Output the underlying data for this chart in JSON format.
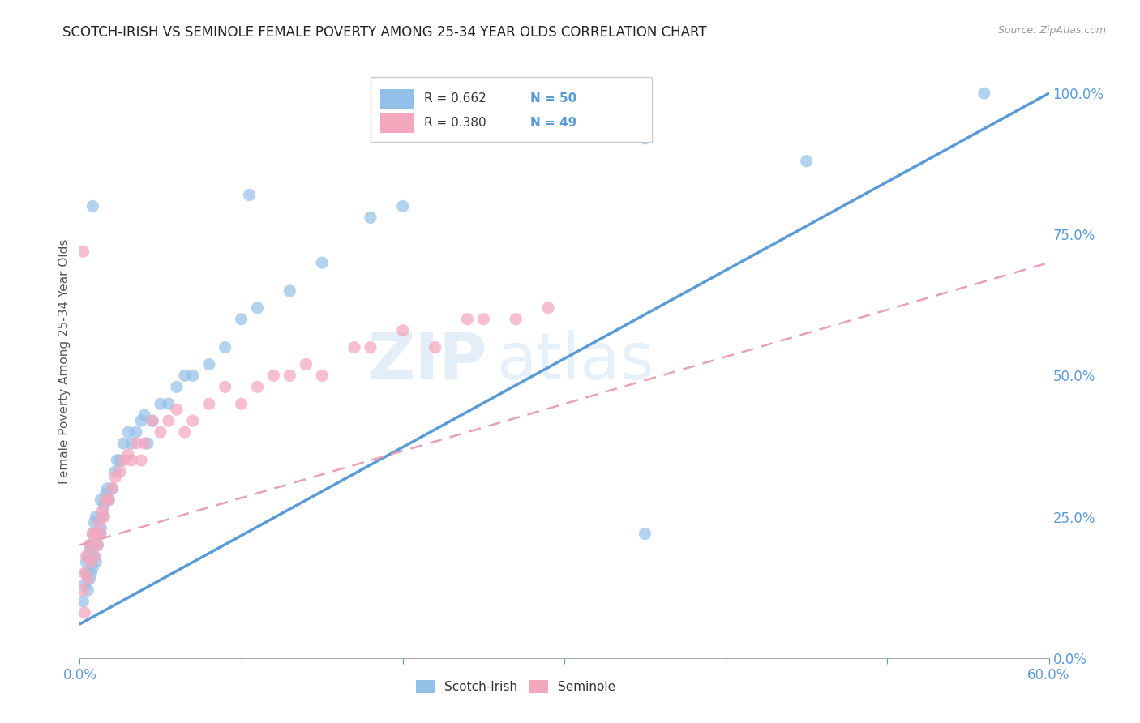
{
  "title": "SCOTCH-IRISH VS SEMINOLE FEMALE POVERTY AMONG 25-34 YEAR OLDS CORRELATION CHART",
  "source": "Source: ZipAtlas.com",
  "ylabel": "Female Poverty Among 25-34 Year Olds",
  "xmin": 0.0,
  "xmax": 0.6,
  "ymin": 0.0,
  "ymax": 1.05,
  "xticks": [
    0.0,
    0.1,
    0.2,
    0.3,
    0.4,
    0.5,
    0.6
  ],
  "xtick_labels": [
    "0.0%",
    "",
    "",
    "",
    "",
    "",
    "60.0%"
  ],
  "yticks": [
    0.0,
    0.25,
    0.5,
    0.75,
    1.0
  ],
  "ytick_labels_right": [
    "0.0%",
    "25.0%",
    "50.0%",
    "75.0%",
    "100.0%"
  ],
  "watermark": "ZIPatlas",
  "blue_color": "#92c0e8",
  "pink_color": "#f4a8be",
  "blue_line_color": "#5b9bd5",
  "pink_line_color": "#e8a0b4",
  "title_color": "#222222",
  "axis_label_color": "#555555",
  "tick_color": "#5b9bd5",
  "grid_color": "#d0d0d0",
  "scotch_irish_x": [
    0.002,
    0.003,
    0.004,
    0.004,
    0.005,
    0.005,
    0.006,
    0.006,
    0.007,
    0.007,
    0.008,
    0.008,
    0.009,
    0.009,
    0.01,
    0.01,
    0.011,
    0.012,
    0.013,
    0.013,
    0.014,
    0.015,
    0.016,
    0.017,
    0.018,
    0.02,
    0.022,
    0.023,
    0.025,
    0.027,
    0.03,
    0.032,
    0.035,
    0.038,
    0.04,
    0.042,
    0.045,
    0.05,
    0.055,
    0.06,
    0.065,
    0.07,
    0.08,
    0.09,
    0.1,
    0.11,
    0.13,
    0.15,
    0.18,
    0.2,
    0.008,
    0.35,
    0.56,
    0.45,
    0.35,
    0.105
  ],
  "scotch_irish_y": [
    0.1,
    0.13,
    0.15,
    0.17,
    0.12,
    0.18,
    0.14,
    0.19,
    0.15,
    0.2,
    0.16,
    0.22,
    0.18,
    0.24,
    0.17,
    0.25,
    0.2,
    0.22,
    0.23,
    0.28,
    0.25,
    0.27,
    0.29,
    0.3,
    0.28,
    0.3,
    0.33,
    0.35,
    0.35,
    0.38,
    0.4,
    0.38,
    0.4,
    0.42,
    0.43,
    0.38,
    0.42,
    0.45,
    0.45,
    0.48,
    0.5,
    0.5,
    0.52,
    0.55,
    0.6,
    0.62,
    0.65,
    0.7,
    0.78,
    0.8,
    0.8,
    0.92,
    1.0,
    0.88,
    0.22,
    0.82
  ],
  "seminole_x": [
    0.002,
    0.003,
    0.004,
    0.005,
    0.006,
    0.007,
    0.008,
    0.009,
    0.01,
    0.011,
    0.012,
    0.013,
    0.014,
    0.015,
    0.016,
    0.018,
    0.02,
    0.022,
    0.025,
    0.027,
    0.03,
    0.032,
    0.035,
    0.038,
    0.04,
    0.045,
    0.05,
    0.055,
    0.06,
    0.065,
    0.07,
    0.08,
    0.09,
    0.1,
    0.11,
    0.12,
    0.13,
    0.14,
    0.15,
    0.17,
    0.18,
    0.2,
    0.22,
    0.24,
    0.25,
    0.27,
    0.29,
    0.003,
    0.002
  ],
  "seminole_y": [
    0.12,
    0.15,
    0.18,
    0.14,
    0.2,
    0.17,
    0.22,
    0.18,
    0.22,
    0.2,
    0.24,
    0.22,
    0.26,
    0.25,
    0.28,
    0.28,
    0.3,
    0.32,
    0.33,
    0.35,
    0.36,
    0.35,
    0.38,
    0.35,
    0.38,
    0.42,
    0.4,
    0.42,
    0.44,
    0.4,
    0.42,
    0.45,
    0.48,
    0.45,
    0.48,
    0.5,
    0.5,
    0.52,
    0.5,
    0.55,
    0.55,
    0.58,
    0.55,
    0.6,
    0.6,
    0.6,
    0.62,
    0.08,
    0.72
  ],
  "blue_trendline_x": [
    0.0,
    0.6
  ],
  "blue_trendline_y": [
    0.06,
    1.0
  ],
  "pink_trendline_x": [
    0.0,
    0.6
  ],
  "pink_trendline_y": [
    0.2,
    0.7
  ]
}
